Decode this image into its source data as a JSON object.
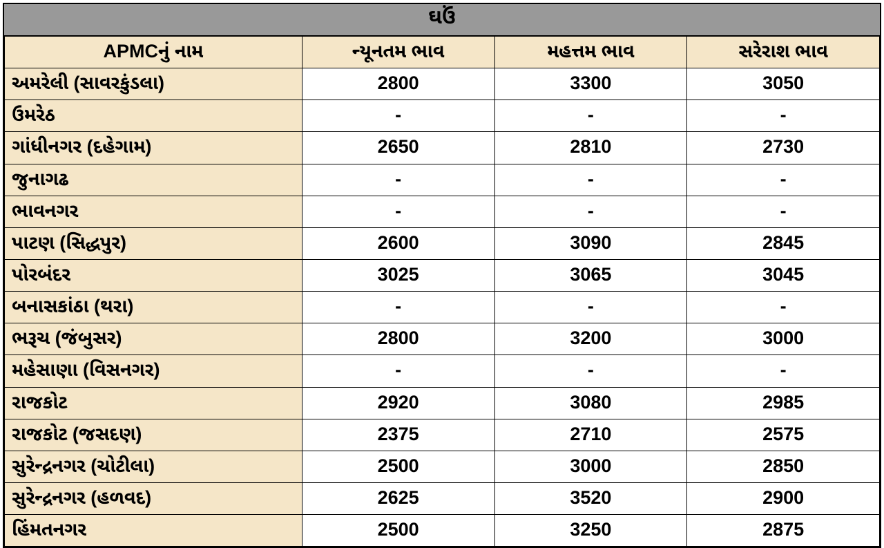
{
  "table": {
    "type": "table",
    "title": "ઘઉં",
    "title_bg": "#999999",
    "title_fontsize": 30,
    "header_bg": "#f5e6c8",
    "name_col_bg": "#f5e6c8",
    "value_bg": "#ffffff",
    "border_color": "#000000",
    "text_color": "#000000",
    "cell_fontsize": 27,
    "font_weight": "bold",
    "col_widths_pct": [
      34,
      22,
      22,
      22
    ],
    "columns": [
      "APMCનું નામ",
      "ન્યૂનતમ ભાવ",
      "મહત્તમ ભાવ",
      "સરેરાશ ભાવ"
    ],
    "col_align": [
      "left",
      "center",
      "center",
      "center"
    ],
    "rows": [
      [
        "અમરેલી (સાવરકુંડલા)",
        "2800",
        "3300",
        "3050"
      ],
      [
        "ઉમરેઠ",
        "-",
        "-",
        "-"
      ],
      [
        "ગાંધીનગર (દહેગામ)",
        "2650",
        "2810",
        "2730"
      ],
      [
        "જુનાગઢ",
        "-",
        "-",
        "-"
      ],
      [
        "ભાવનગર",
        "-",
        "-",
        "-"
      ],
      [
        "પાટણ (સિદ્ધપુર)",
        "2600",
        "3090",
        "2845"
      ],
      [
        "પોરબંદર",
        "3025",
        "3065",
        "3045"
      ],
      [
        "બનાસકાંઠા (થરા)",
        "-",
        "-",
        "-"
      ],
      [
        "ભરૂચ (જંબુસર)",
        "2800",
        "3200",
        "3000"
      ],
      [
        "મહેસાણા (વિસનગર)",
        "-",
        "-",
        "-"
      ],
      [
        "રાજકોટ",
        "2920",
        "3080",
        "2985"
      ],
      [
        "રાજકોટ (જસદણ)",
        "2375",
        "2710",
        "2575"
      ],
      [
        "સુરેન્દ્રનગર (ચોટીલા)",
        "2500",
        "3000",
        "2850"
      ],
      [
        "સુરેન્દ્રનગર (હળવદ)",
        "2625",
        "3520",
        "2900"
      ],
      [
        "હિંમતનગર",
        "2500",
        "3250",
        "2875"
      ]
    ]
  }
}
